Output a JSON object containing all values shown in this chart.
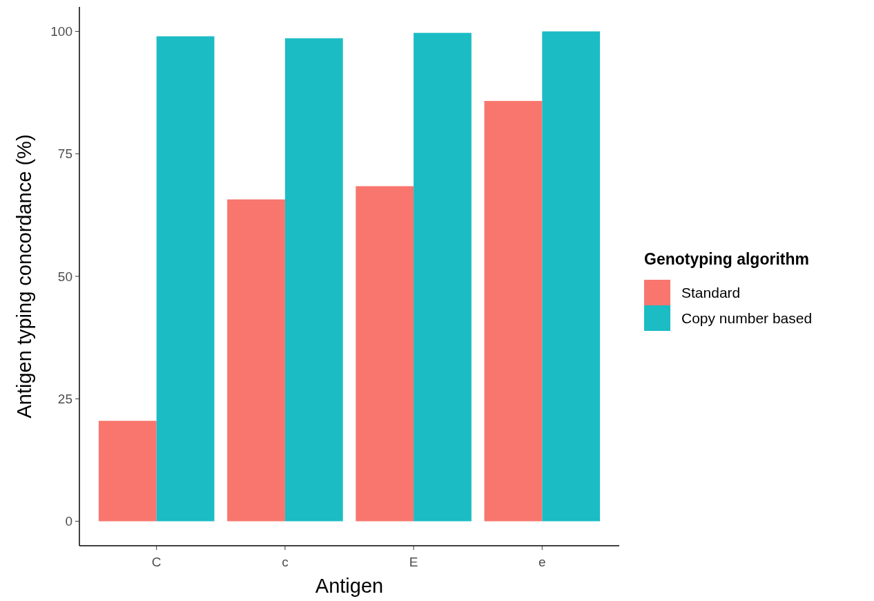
{
  "chart_data": {
    "type": "bar",
    "xlabel": "Antigen",
    "ylabel": "Antigen typing concordance (%)",
    "legend_title": "Genotyping algorithm",
    "legend": "right",
    "categories": [
      "C",
      "c",
      "E",
      "e"
    ],
    "series": [
      {
        "name": "Standard",
        "color": "#f8766d",
        "values": [
          20.5,
          65.7,
          68.4,
          85.8
        ]
      },
      {
        "name": "Copy number based",
        "color": "#1bbcc4",
        "values": [
          99.0,
          98.6,
          99.7,
          100
        ]
      }
    ],
    "ylim": [
      -5,
      105
    ],
    "yticks": [
      0,
      25,
      50,
      75,
      100
    ],
    "grid": false
  }
}
